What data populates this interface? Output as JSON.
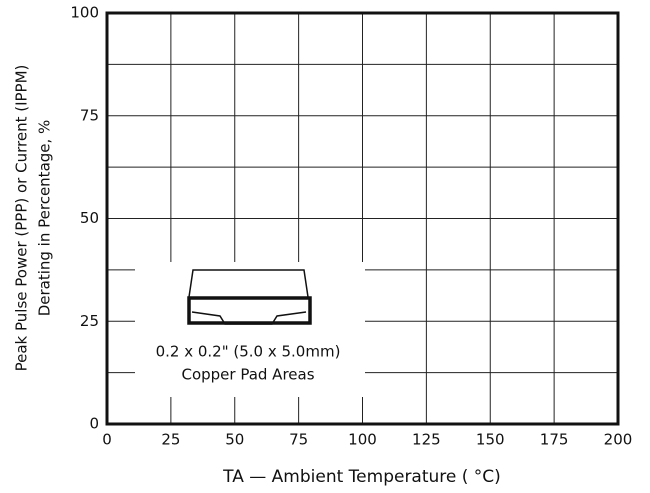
{
  "chart_data": {
    "type": "line",
    "title": null,
    "y_label_lines": [
      "Peak Pulse Power (PPP) or Current (IPPM)",
      "Derating in Percentage, %"
    ],
    "x_label": "TA — Ambient Temperature ( °C)",
    "annotation_lines": [
      "0.2 x 0.2\" (5.0 x 5.0mm)",
      "Copper Pad Areas"
    ],
    "series": [],
    "xlim": [
      0,
      200
    ],
    "xticks": [
      0,
      25,
      50,
      75,
      100,
      125,
      150,
      175,
      200
    ],
    "ylim": [
      0,
      100
    ],
    "yticks": [
      0,
      25,
      50,
      75,
      100
    ],
    "yminor": [
      12.5,
      37.5,
      62.5,
      87.5
    ],
    "grid": true
  }
}
